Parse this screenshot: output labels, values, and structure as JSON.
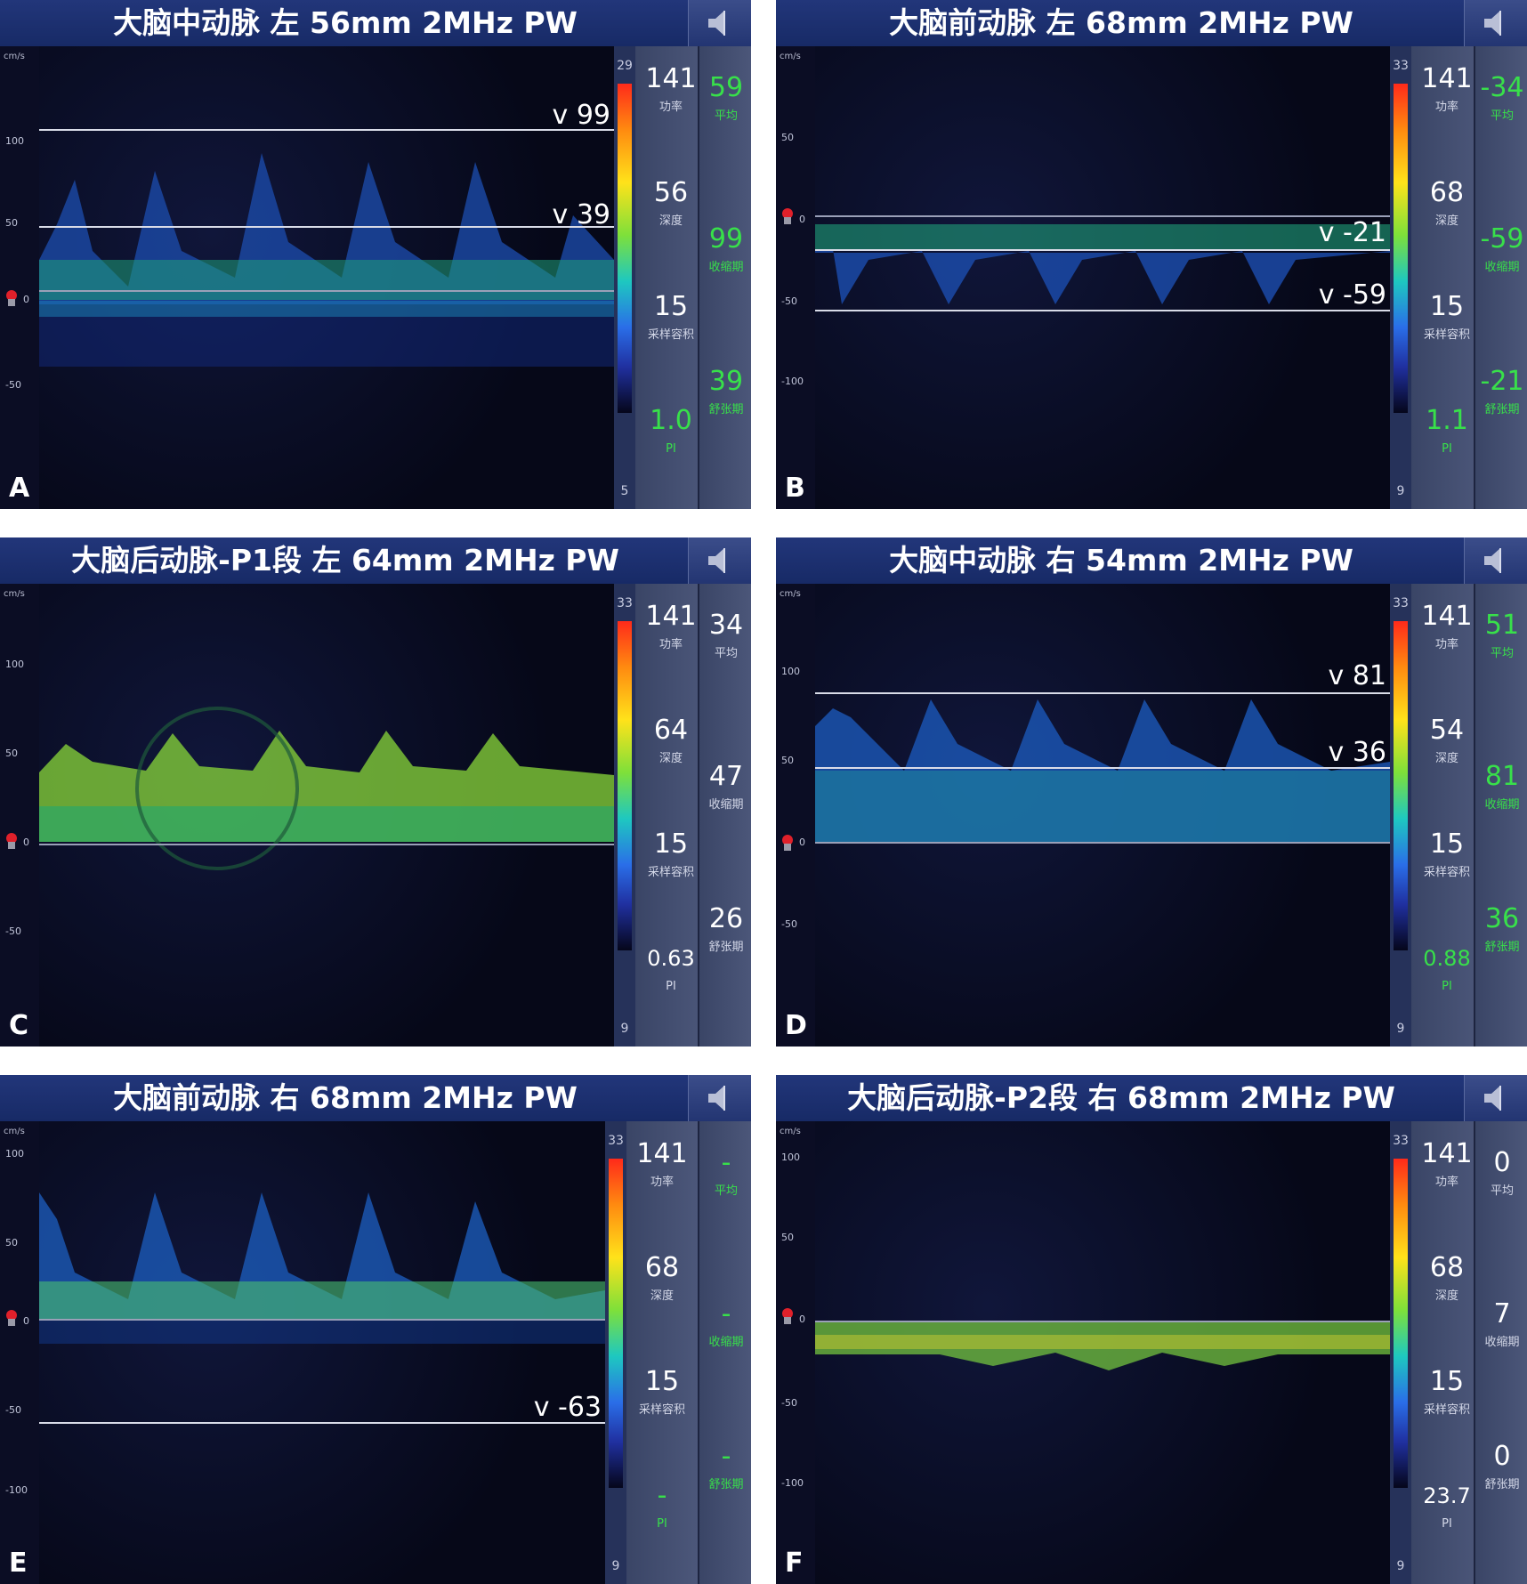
{
  "panels": [
    {
      "letter": "A",
      "title": "大脑中动脉 左 56mm 2MHz PW",
      "ticks": [
        "cm/s",
        "100",
        "50",
        "0",
        "-50"
      ],
      "scale_top": "29",
      "scale_bot": "5",
      "col1": [
        {
          "num": "141",
          "lab": "功率"
        },
        {
          "num": "56",
          "lab": "深度"
        },
        {
          "num": "15",
          "lab": "采样容积"
        },
        {
          "num": "1.0",
          "lab": "PI",
          "green": true
        }
      ],
      "col2": [
        {
          "num": "59",
          "lab": "平均",
          "green": true
        },
        {
          "num": "99",
          "lab": "收缩期",
          "green": true
        },
        {
          "num": "39",
          "lab": "舒张期",
          "green": true
        }
      ],
      "v_labels": [
        "v 99",
        "v 39"
      ]
    },
    {
      "letter": "B",
      "title": "大脑前动脉 左 68mm 2MHz PW",
      "ticks": [
        "cm/s",
        "50",
        "0",
        "-50",
        "-100"
      ],
      "scale_top": "33",
      "scale_bot": "9",
      "col1": [
        {
          "num": "141",
          "lab": "功率"
        },
        {
          "num": "68",
          "lab": "深度"
        },
        {
          "num": "15",
          "lab": "采样容积"
        },
        {
          "num": "1.1",
          "lab": "PI",
          "green": true
        }
      ],
      "col2": [
        {
          "num": "-34",
          "lab": "平均",
          "green": true
        },
        {
          "num": "-59",
          "lab": "收缩期",
          "green": true
        },
        {
          "num": "-21",
          "lab": "舒张期",
          "green": true
        }
      ],
      "v_labels": [
        "v -21",
        "v -59"
      ]
    },
    {
      "letter": "C",
      "title": "大脑后动脉-P1段 左 64mm 2MHz PW",
      "ticks": [
        "cm/s",
        "100",
        "50",
        "0",
        "-50"
      ],
      "scale_top": "33",
      "scale_bot": "9",
      "col1": [
        {
          "num": "141",
          "lab": "功率"
        },
        {
          "num": "64",
          "lab": "深度"
        },
        {
          "num": "15",
          "lab": "采样容积"
        },
        {
          "num": "0.63",
          "lab": "PI"
        }
      ],
      "col2": [
        {
          "num": "34",
          "lab": "平均"
        },
        {
          "num": "47",
          "lab": "收缩期"
        },
        {
          "num": "26",
          "lab": "舒张期"
        }
      ],
      "v_labels": []
    },
    {
      "letter": "D",
      "title": "大脑中动脉 右 54mm 2MHz PW",
      "ticks": [
        "cm/s",
        "100",
        "50",
        "0",
        "-50"
      ],
      "scale_top": "33",
      "scale_bot": "9",
      "col1": [
        {
          "num": "141",
          "lab": "功率"
        },
        {
          "num": "54",
          "lab": "深度"
        },
        {
          "num": "15",
          "lab": "采样容积"
        },
        {
          "num": "0.88",
          "lab": "PI",
          "green": true
        }
      ],
      "col2": [
        {
          "num": "51",
          "lab": "平均",
          "green": true
        },
        {
          "num": "81",
          "lab": "收缩期",
          "green": true
        },
        {
          "num": "36",
          "lab": "舒张期",
          "green": true
        }
      ],
      "v_labels": [
        "v 81",
        "v 36"
      ]
    },
    {
      "letter": "E",
      "title": "大脑前动脉 右 68mm 2MHz PW",
      "ticks": [
        "cm/s",
        "100",
        "50",
        "0",
        "-50",
        "-100"
      ],
      "scale_top": "33",
      "scale_bot": "9",
      "col1": [
        {
          "num": "141",
          "lab": "功率"
        },
        {
          "num": "68",
          "lab": "深度"
        },
        {
          "num": "15",
          "lab": "采样容积"
        },
        {
          "num": "-",
          "lab": "PI",
          "green": true
        }
      ],
      "col2": [
        {
          "num": "-",
          "lab": "平均",
          "green": true
        },
        {
          "num": "-",
          "lab": "收缩期",
          "green": true
        },
        {
          "num": "-",
          "lab": "舒张期",
          "green": true
        }
      ],
      "v_labels": [
        "v -63"
      ]
    },
    {
      "letter": "F",
      "title": "大脑后动脉-P2段 右 68mm 2MHz PW",
      "ticks": [
        "cm/s",
        "100",
        "50",
        "0",
        "-50",
        "-100"
      ],
      "scale_top": "33",
      "scale_bot": "9",
      "col1": [
        {
          "num": "141",
          "lab": "功率"
        },
        {
          "num": "68",
          "lab": "深度"
        },
        {
          "num": "15",
          "lab": "采样容积"
        },
        {
          "num": "23.7",
          "lab": "PI"
        }
      ],
      "col2": [
        {
          "num": "0",
          "lab": "平均"
        },
        {
          "num": "7",
          "lab": "收缩期"
        },
        {
          "num": "0",
          "lab": "舒张期"
        }
      ],
      "v_labels": []
    }
  ]
}
